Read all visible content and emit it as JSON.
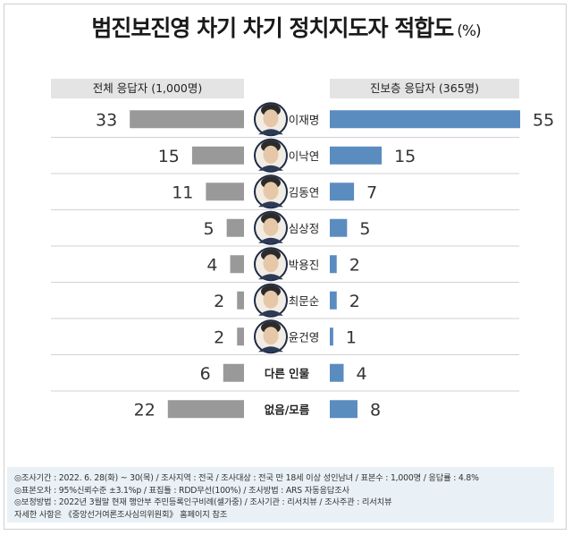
{
  "title": "범진보진영 차기 차기 정치지도자 적합도",
  "title_unit": "(%)",
  "chart_data": {
    "type": "bar",
    "categories": [
      "이재명",
      "이낙연",
      "김동연",
      "심상정",
      "박용진",
      "최문순",
      "윤건영",
      "다른 인물",
      "없음/모름"
    ],
    "series": [
      {
        "name": "전체 응답자 (1,000명)",
        "values": [
          33,
          15,
          11,
          5,
          4,
          2,
          2,
          6,
          22
        ],
        "color": "#999999"
      },
      {
        "name": "진보층 응답자 (365명)",
        "values": [
          55,
          15,
          7,
          5,
          2,
          2,
          1,
          4,
          8
        ],
        "color": "#5b8cc0"
      }
    ],
    "has_photo": [
      true,
      true,
      true,
      true,
      true,
      true,
      true,
      false,
      false
    ]
  },
  "notes": [
    "◎조사기간 : 2022. 6. 28(화) ~ 30(목) / 조사지역 : 전국 / 조사대상 : 전국 만 18세 이상 성인남녀 / 표본수 : 1,000명 / 응답률 : 4.8%",
    "◎표본오차 : 95%신뢰수준 ±3.1%p / 표집틀 : RDD무선(100%) / 조사방법 : ARS 자동응답조사",
    "◎보정방법 : 2022년 3월말 현재 행안부 주민등록인구비례(셀가중) / 조사기관 : 리서치뷰 / 조사주관 : 리서치뷰",
    "자세한 사항은 《중앙선거여론조사심의위원회》 홈페이지 참조"
  ]
}
